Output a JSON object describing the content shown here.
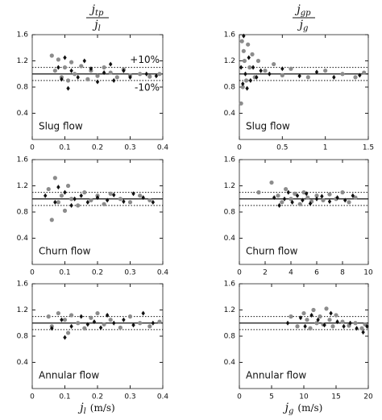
{
  "chart_data": [
    {
      "type": "scatter",
      "title": {
        "numerator": {
          "base": "j",
          "sub": "tp"
        },
        "denominator": {
          "base": "j",
          "sub": "l"
        }
      },
      "label": "Slug flow",
      "annotations": [
        "+10%",
        "-10%"
      ],
      "xlim": [
        0,
        0.4
      ],
      "xticks": [
        0,
        0.1,
        0.2,
        0.3,
        0.4
      ],
      "ylim": [
        0,
        1.6
      ],
      "yticks": [
        0.4,
        0.8,
        1.2,
        1.6
      ],
      "hlines": [
        {
          "y": 1,
          "style": "solid"
        },
        {
          "y": 1.1,
          "style": "dotted"
        },
        {
          "y": 0.9,
          "style": "dotted"
        }
      ],
      "series": [
        {
          "color": "#8c8c8c",
          "marker": "circle",
          "x": [
            0.06,
            0.07,
            0.08,
            0.09,
            0.1,
            0.11,
            0.12,
            0.13,
            0.15,
            0.17,
            0.18,
            0.2,
            0.22,
            0.24,
            0.26,
            0.28,
            0.3,
            0.33,
            0.36,
            0.39
          ],
          "values": [
            1.28,
            1.05,
            1.22,
            0.95,
            1.1,
            0.9,
            1.18,
            1.0,
            1.12,
            0.92,
            1.05,
            0.97,
            1.1,
            1.02,
            0.95,
            1.07,
            0.98,
            1.0,
            0.96,
            1.0
          ]
        },
        {
          "color": "#111111",
          "marker": "diamond",
          "x": [
            0.08,
            0.09,
            0.1,
            0.11,
            0.12,
            0.14,
            0.16,
            0.18,
            0.2,
            0.22,
            0.24,
            0.25,
            0.28,
            0.3,
            0.35,
            0.38
          ],
          "values": [
            1.1,
            0.92,
            1.25,
            0.78,
            1.05,
            0.95,
            1.2,
            1.08,
            0.88,
            1.02,
            1.15,
            0.9,
            1.05,
            0.95,
            1.0,
            0.97
          ]
        }
      ]
    },
    {
      "type": "scatter",
      "title": {
        "numerator": {
          "base": "j",
          "sub": "gp"
        },
        "denominator": {
          "base": "j",
          "sub": "g"
        }
      },
      "label": "Slug flow",
      "xlim": [
        0,
        1.5
      ],
      "xticks": [
        0,
        0.5,
        1,
        1.5
      ],
      "ylim": [
        0,
        1.6
      ],
      "yticks": [
        0.4,
        0.8,
        1.2,
        1.6
      ],
      "hlines": [
        {
          "y": 1,
          "style": "solid"
        },
        {
          "y": 1.1,
          "style": "dotted"
        },
        {
          "y": 0.9,
          "style": "dotted"
        }
      ],
      "series": [
        {
          "color": "#8c8c8c",
          "marker": "circle",
          "x": [
            0.02,
            0.03,
            0.04,
            0.05,
            0.06,
            0.08,
            0.1,
            0.12,
            0.15,
            0.18,
            0.22,
            0.3,
            0.4,
            0.5,
            0.6,
            0.8,
            1.0,
            1.2,
            1.35,
            1.45
          ],
          "values": [
            0.55,
            1.5,
            0.8,
            1.35,
            1.2,
            0.9,
            1.45,
            1.1,
            1.3,
            0.95,
            1.2,
            1.05,
            1.15,
            0.98,
            1.08,
            0.95,
            1.05,
            1.0,
            0.95,
            1.02
          ]
        },
        {
          "color": "#111111",
          "marker": "diamond",
          "x": [
            0.02,
            0.04,
            0.05,
            0.07,
            0.09,
            0.11,
            0.13,
            0.16,
            0.2,
            0.25,
            0.35,
            0.5,
            0.7,
            0.9,
            1.1,
            1.4
          ],
          "values": [
            1.1,
            0.85,
            1.58,
            1.0,
            0.78,
            1.25,
            0.9,
            1.1,
            0.95,
            1.05,
            1.0,
            1.08,
            0.97,
            1.03,
            0.95,
            0.98
          ]
        }
      ]
    },
    {
      "type": "scatter",
      "label": "Churn flow",
      "xlim": [
        0,
        0.4
      ],
      "xticks": [
        0,
        0.1,
        0.2,
        0.3,
        0.4
      ],
      "ylim": [
        0,
        1.6
      ],
      "yticks": [
        0.4,
        0.8,
        1.2,
        1.6
      ],
      "hlines": [
        {
          "y": 1,
          "style": "solid"
        },
        {
          "y": 1.1,
          "style": "dotted"
        },
        {
          "y": 0.9,
          "style": "dotted"
        }
      ],
      "series": [
        {
          "color": "#8c8c8c",
          "marker": "circle",
          "x": [
            0.05,
            0.06,
            0.07,
            0.08,
            0.09,
            0.1,
            0.11,
            0.12,
            0.14,
            0.16,
            0.18,
            0.2,
            0.22,
            0.24,
            0.27,
            0.3,
            0.33,
            0.36
          ],
          "values": [
            1.15,
            0.68,
            1.32,
            0.95,
            1.05,
            0.82,
            1.2,
            1.0,
            0.9,
            1.1,
            0.98,
            1.05,
            0.92,
            1.08,
            1.0,
            0.95,
            1.05,
            0.98
          ]
        },
        {
          "color": "#111111",
          "marker": "diamond",
          "x": [
            0.04,
            0.07,
            0.08,
            0.1,
            0.12,
            0.13,
            0.15,
            0.17,
            0.2,
            0.23,
            0.25,
            0.28,
            0.31,
            0.34,
            0.37
          ],
          "values": [
            1.05,
            0.95,
            1.18,
            1.1,
            0.9,
            1.0,
            1.05,
            0.95,
            1.02,
            0.98,
            1.06,
            0.96,
            1.08,
            1.02,
            0.95
          ]
        }
      ]
    },
    {
      "type": "scatter",
      "label": "Churn flow",
      "xlim": [
        0,
        10
      ],
      "xticks": [
        0,
        2,
        4,
        6,
        8,
        10
      ],
      "ylim": [
        0,
        1.6
      ],
      "yticks": [
        0.4,
        0.8,
        1.2,
        1.6
      ],
      "hlines": [
        {
          "y": 1,
          "style": "solid"
        },
        {
          "y": 1.1,
          "style": "dotted"
        },
        {
          "y": 0.9,
          "style": "dotted"
        }
      ],
      "series": [
        {
          "color": "#8c8c8c",
          "marker": "circle",
          "x": [
            1.5,
            2.5,
            3,
            3.3,
            3.6,
            4,
            4.3,
            4.7,
            5,
            5.3,
            5.6,
            6,
            6.5,
            7,
            7.5,
            8,
            8.5,
            9
          ],
          "values": [
            1.1,
            1.25,
            1.05,
            0.95,
            1.15,
            1.0,
            1.08,
            0.92,
            1.1,
            1.02,
            0.96,
            1.05,
            0.98,
            1.07,
            1.0,
            1.1,
            0.95,
            1.02
          ]
        },
        {
          "color": "#111111",
          "marker": "diamond",
          "x": [
            2.7,
            3.1,
            3.5,
            3.8,
            4.1,
            4.5,
            4.9,
            5.2,
            5.5,
            6,
            6.4,
            7,
            7.6,
            8.2,
            8.8
          ],
          "values": [
            1.02,
            0.9,
            1.0,
            1.1,
            0.95,
            1.05,
            0.98,
            1.08,
            0.93,
            1.0,
            1.04,
            0.96,
            1.02,
            0.98,
            1.05
          ]
        }
      ]
    },
    {
      "type": "scatter",
      "label": "Annular flow",
      "xlabel": {
        "base": "j",
        "sub": "l",
        "unit": "(m/s)"
      },
      "xlim": [
        0,
        0.4
      ],
      "xticks": [
        0,
        0.1,
        0.2,
        0.3,
        0.4
      ],
      "ylim": [
        0,
        1.6
      ],
      "yticks": [
        0.4,
        0.8,
        1.2,
        1.6
      ],
      "hlines": [
        {
          "y": 1,
          "style": "solid"
        },
        {
          "y": 1.1,
          "style": "dotted"
        },
        {
          "y": 0.9,
          "style": "dotted"
        }
      ],
      "series": [
        {
          "color": "#8c8c8c",
          "marker": "circle",
          "x": [
            0.05,
            0.06,
            0.08,
            0.1,
            0.11,
            0.12,
            0.14,
            0.16,
            0.18,
            0.2,
            0.22,
            0.24,
            0.27,
            0.3,
            0.33,
            0.36,
            0.39
          ],
          "values": [
            1.1,
            0.95,
            1.15,
            1.05,
            0.85,
            1.12,
            1.0,
            0.92,
            1.08,
            1.15,
            0.98,
            1.05,
            0.93,
            1.1,
            1.0,
            0.95,
            1.02
          ]
        },
        {
          "color": "#111111",
          "marker": "diamond",
          "x": [
            0.06,
            0.09,
            0.1,
            0.12,
            0.15,
            0.17,
            0.19,
            0.21,
            0.23,
            0.25,
            0.28,
            0.31,
            0.34,
            0.37
          ],
          "values": [
            0.92,
            1.05,
            0.78,
            0.95,
            1.1,
            0.98,
            1.02,
            0.93,
            1.12,
            1.0,
            1.05,
            0.97,
            1.15,
            1.0
          ]
        }
      ]
    },
    {
      "type": "scatter",
      "label": "Annular flow",
      "xlabel": {
        "base": "j",
        "sub": "g",
        "unit": "(m/s)"
      },
      "xlim": [
        0,
        20
      ],
      "xticks": [
        0,
        5,
        10,
        15,
        20
      ],
      "ylim": [
        0,
        1.6
      ],
      "yticks": [
        0.4,
        0.8,
        1.2,
        1.6
      ],
      "hlines": [
        {
          "y": 1,
          "style": "solid"
        },
        {
          "y": 1.1,
          "style": "dotted"
        },
        {
          "y": 0.9,
          "style": "dotted"
        }
      ],
      "series": [
        {
          "color": "#8c8c8c",
          "marker": "circle",
          "x": [
            8,
            9,
            10,
            10.5,
            11,
            11.5,
            12,
            12.5,
            13,
            13.5,
            14,
            14.5,
            15,
            16,
            17,
            18,
            19,
            19.5
          ],
          "values": [
            1.1,
            0.95,
            1.15,
            1.05,
            0.92,
            1.2,
            1.0,
            1.1,
            0.98,
            1.22,
            1.05,
            0.95,
            1.12,
            1.02,
            0.96,
            1.0,
            0.92,
            0.98
          ]
        },
        {
          "color": "#111111",
          "marker": "diamond",
          "x": [
            7.5,
            9.5,
            10.2,
            11.2,
            12.2,
            13.2,
            14.2,
            15.2,
            16.2,
            17.2,
            18.2,
            19.2,
            19.8
          ],
          "values": [
            1.0,
            1.08,
            0.95,
            1.12,
            1.05,
            0.97,
            1.15,
            1.02,
            0.95,
            1.0,
            0.92,
            0.86,
            0.95
          ]
        }
      ]
    }
  ]
}
